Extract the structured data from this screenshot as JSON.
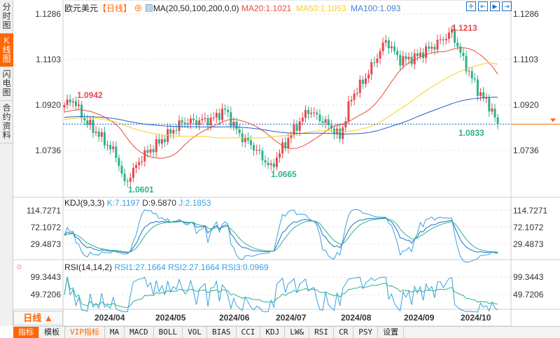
{
  "sidebar": {
    "items": [
      {
        "label": "分时图",
        "active": false
      },
      {
        "label": "K线图",
        "active": true
      },
      {
        "label": "闪电图",
        "active": false
      },
      {
        "label": "合约资料",
        "active": false
      }
    ]
  },
  "header": {
    "symbol": "欧元美元",
    "period": "【日线】",
    "ma_label": "MA(20,50,100,200,0,0)",
    "ma20": "MA20:1.1021",
    "ma50": "MA50:1.1053",
    "ma100": "MA100:1.093"
  },
  "colors": {
    "up": "#e8474f",
    "down": "#2bb38a",
    "ma20": "#e84b3c",
    "ma50": "#f5d020",
    "ma100": "#1f5fbf",
    "kdj_k": "#3aa0e0",
    "accent": "#ff6600"
  },
  "price_axis": [
    "1.1286",
    "1.1103",
    "1.0920",
    "1.0736"
  ],
  "annotations": {
    "high1": "1.0942",
    "low1": "1.0601",
    "low2": "1.0665",
    "high2": "1.1213",
    "last": "1.0833"
  },
  "kdj": {
    "label": "KDJ(9,3,3)",
    "k": "K:7.1197",
    "d": "D:9.5870",
    "j": "J:2.1853",
    "axis": [
      "114.7271",
      "72.1072",
      "29.4873"
    ]
  },
  "rsi": {
    "label": "RSI(14,14,2)",
    "rsi1": "RSI1:27.1664",
    "rsi2": "RSI2:27.1664",
    "rsi3": "RSI3:0.0969",
    "axis": [
      "99.3443",
      "49.7206"
    ]
  },
  "period_button": "日线 ▲",
  "dates": [
    "2024/04",
    "2024/05",
    "2024/06",
    "2024/07",
    "2024/08",
    "2024/09",
    "2024/10"
  ],
  "toolbar": [
    "指标",
    "模板",
    "VIP指标",
    "MA",
    "MACD",
    "BOLL",
    "VOL",
    "BIAS",
    "CCI",
    "KDJ",
    "LW&",
    "RSI",
    "CR",
    "PSY",
    "设置"
  ],
  "chart_data": {
    "type": "candlestick",
    "keypoints": [
      [
        0,
        1.092
      ],
      [
        3,
        1.0942
      ],
      [
        7,
        1.086
      ],
      [
        12,
        1.08
      ],
      [
        18,
        1.072
      ],
      [
        21,
        1.0601
      ],
      [
        27,
        1.071
      ],
      [
        34,
        1.078
      ],
      [
        41,
        1.085
      ],
      [
        51,
        1.086
      ],
      [
        56,
        1.09
      ],
      [
        61,
        1.08
      ],
      [
        66,
        1.075
      ],
      [
        72,
        1.0665
      ],
      [
        75,
        1.073
      ],
      [
        80,
        1.082
      ],
      [
        85,
        1.09
      ],
      [
        93,
        1.083
      ],
      [
        96,
        1.079
      ],
      [
        100,
        1.095
      ],
      [
        105,
        1.103
      ],
      [
        112,
        1.118
      ],
      [
        117,
        1.11
      ],
      [
        122,
        1.111
      ],
      [
        129,
        1.116
      ],
      [
        135,
        1.1213
      ],
      [
        139,
        1.11
      ],
      [
        144,
        1.098
      ],
      [
        149,
        1.09
      ],
      [
        151,
        1.0833
      ]
    ]
  }
}
